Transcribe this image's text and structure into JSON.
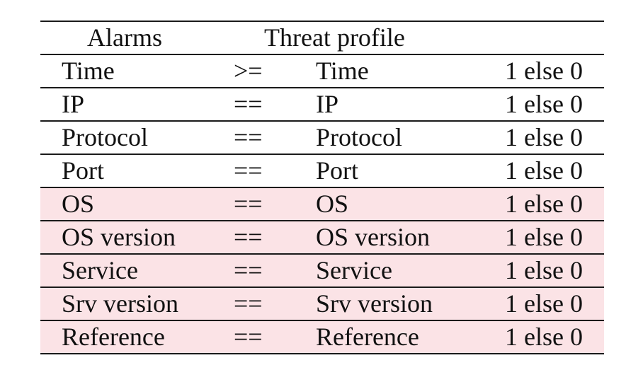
{
  "header": {
    "alarms": "Alarms",
    "threat_profile": "Threat profile"
  },
  "rows": [
    {
      "alarm": "Time",
      "op": ">=",
      "profile": "Time",
      "result": "1 else 0",
      "highlighted": false
    },
    {
      "alarm": "IP",
      "op": "==",
      "profile": "IP",
      "result": "1 else 0",
      "highlighted": false
    },
    {
      "alarm": "Protocol",
      "op": "==",
      "profile": "Protocol",
      "result": "1 else 0",
      "highlighted": false
    },
    {
      "alarm": "Port",
      "op": "==",
      "profile": "Port",
      "result": "1 else 0",
      "highlighted": false
    },
    {
      "alarm": "OS",
      "op": "==",
      "profile": "OS",
      "result": "1 else 0",
      "highlighted": true
    },
    {
      "alarm": "OS version",
      "op": "==",
      "profile": "OS version",
      "result": "1 else 0",
      "highlighted": true
    },
    {
      "alarm": "Service",
      "op": "==",
      "profile": "Service",
      "result": "1 else 0",
      "highlighted": true
    },
    {
      "alarm": "Srv version",
      "op": "==",
      "profile": "Srv version",
      "result": "1 else 0",
      "highlighted": true
    },
    {
      "alarm": "Reference",
      "op": "==",
      "profile": "Reference",
      "result": "1 else 0",
      "highlighted": true
    }
  ],
  "colors": {
    "highlight": "#fbe3e6",
    "rule": "#1a1a1a"
  }
}
